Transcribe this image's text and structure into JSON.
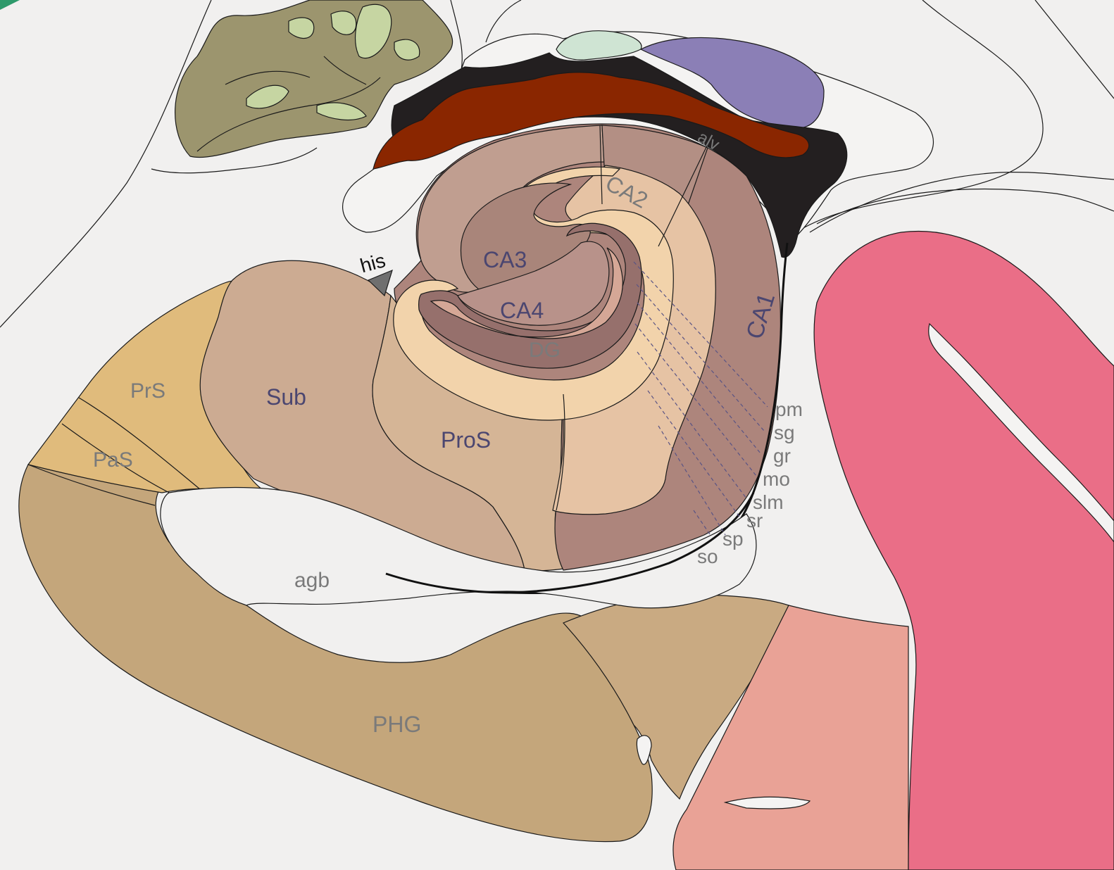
{
  "labels": {
    "his": "his",
    "alv": "alv",
    "ca1": "CA1",
    "ca2": "CA2",
    "ca3": "CA3",
    "ca4": "CA4",
    "dg": "DG",
    "prs": "PrS",
    "pas": "PaS",
    "sub": "Sub",
    "pros": "ProS",
    "agb": "agb",
    "phg": "PHG",
    "layers": [
      "pm",
      "sg",
      "gr",
      "mo",
      "slm",
      "sr",
      "sp",
      "so"
    ]
  },
  "colors": {
    "background": "#f1f0ef",
    "phg": "#c4a67b",
    "phg_lateral": "#c9aa82",
    "prs_pas": "#e0bb7c",
    "sub": "#ccab92",
    "pros": "#d5b596",
    "ca1": "#ad857c",
    "ca_outer": "#c09e90",
    "ca_inner": "#a9857a",
    "sr_band": "#e6c3a4",
    "light_band": "#f2d3ab",
    "dg": "#d5a796",
    "dg_edge": "#96706c",
    "red_plexus": "#8a2600",
    "black_structure": "#231f20",
    "purple": "#8b7fb6",
    "mint": "#cfe4d3",
    "olive": "#9c956e",
    "olive_light": "#c6d5a2",
    "pink_lateral": "#e9a296",
    "pink_temporal": "#ea6e87",
    "green_corner": "#2e9a6b",
    "text_grey": "#7a7a7a",
    "text_dark": "#4b4670",
    "arrow_grey": "#6f6f6f"
  }
}
